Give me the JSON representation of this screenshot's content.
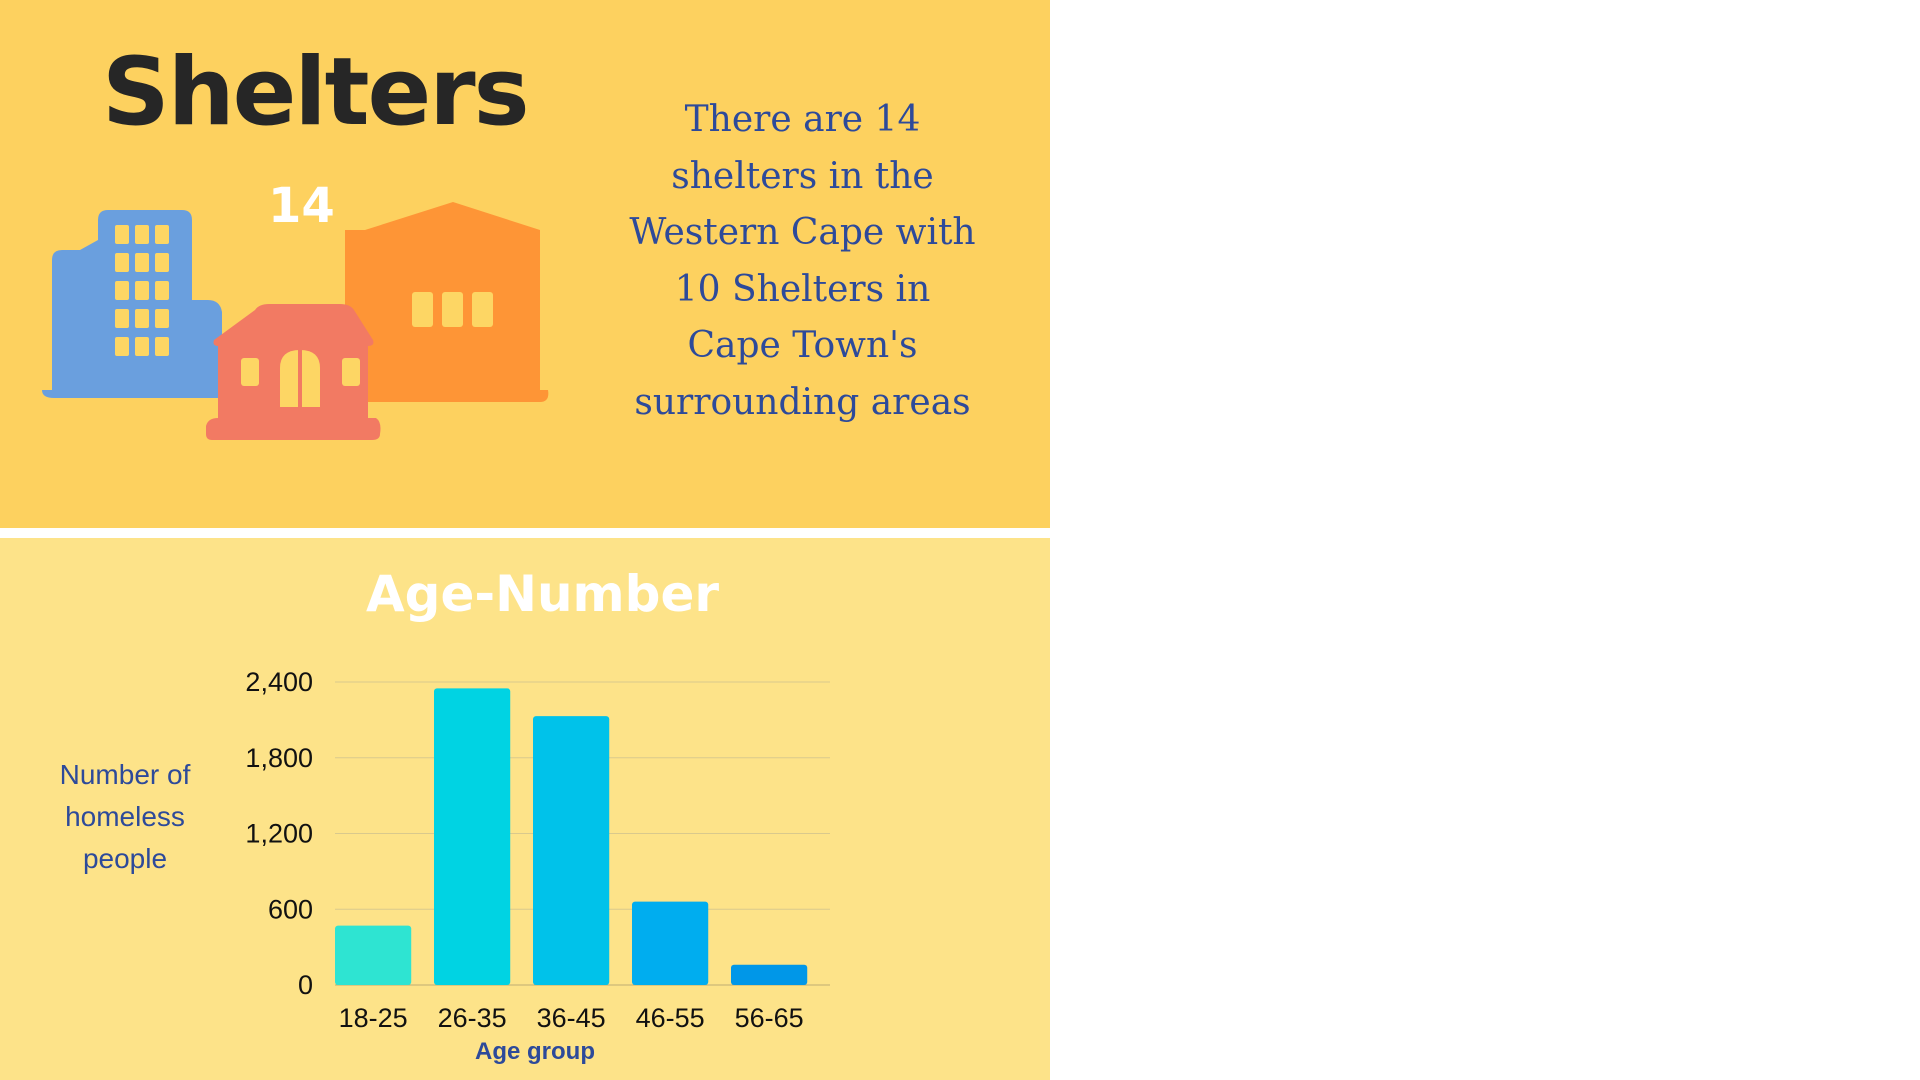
{
  "shelters": {
    "title": "Shelters",
    "count": "14",
    "description": "There are 14 shelters in the Western Cape with 10 Shelters in Cape Town's surrounding areas"
  },
  "colors": {
    "top_background": "#fdd15f",
    "bottom_background": "#fde389",
    "text_blue": "#2d4a9a",
    "building_blue": "#6a9fde",
    "building_red": "#f27a63",
    "building_orange": "#fe9536"
  },
  "icons": [
    "office-building-icon",
    "house-icon",
    "warehouse-icon"
  ],
  "chart_data": {
    "type": "bar",
    "title": "Age-Number",
    "xlabel": "Age group",
    "ylabel": "Number of homeless people",
    "categories": [
      "18-25",
      "26-35",
      "36-45",
      "46-55",
      "56-65"
    ],
    "values": [
      470,
      2350,
      2130,
      660,
      160
    ],
    "bar_colors": [
      "#2ee4d2",
      "#00d3e3",
      "#00c2ea",
      "#00adef",
      "#0097e8"
    ],
    "ylim": [
      0,
      2400
    ],
    "yticks": [
      0,
      600,
      1200,
      1800,
      2400
    ],
    "ytick_labels": [
      "0",
      "600",
      "1,200",
      "1,800",
      "2,400"
    ],
    "grid": true,
    "legend": "none"
  }
}
